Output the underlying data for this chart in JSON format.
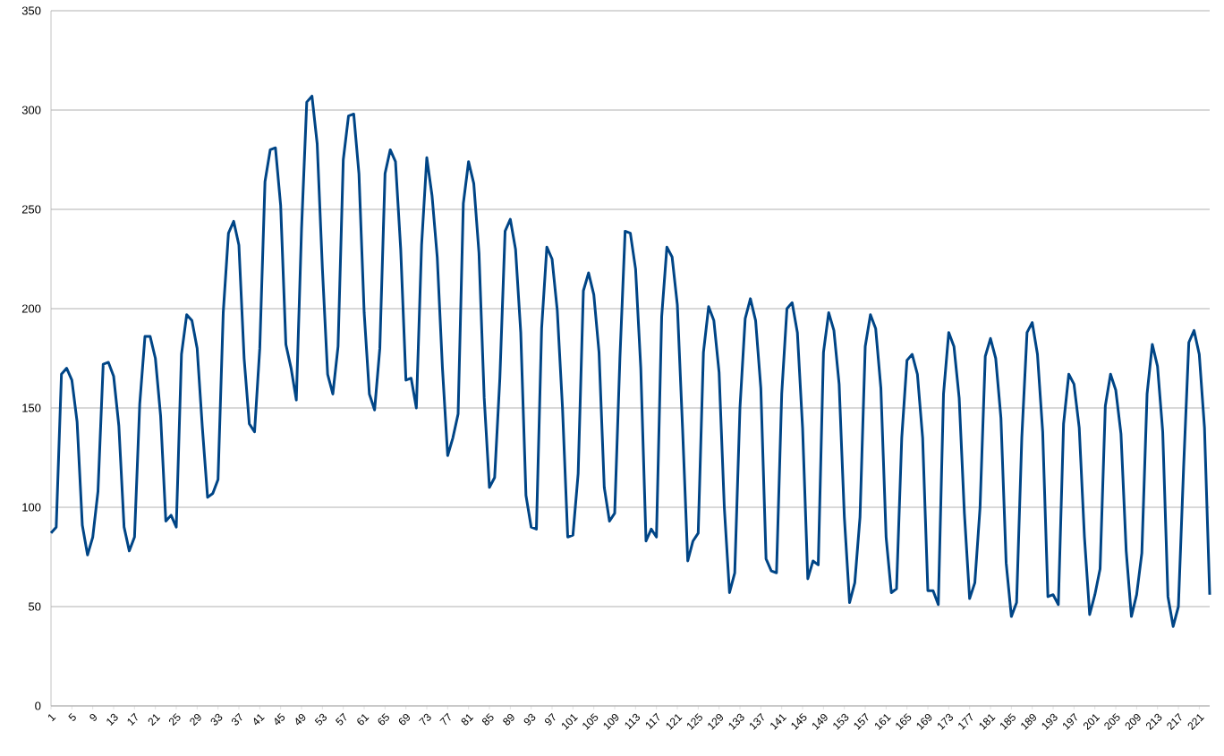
{
  "chart_data": {
    "type": "line",
    "color": "#004586",
    "categories": [
      "1",
      null,
      null,
      null,
      "5",
      null,
      null,
      null,
      "9",
      null,
      null,
      null,
      "13",
      null,
      null,
      null,
      "17",
      null,
      null,
      null,
      "21",
      null,
      null,
      null,
      "25",
      null,
      null,
      null,
      "29",
      null,
      null,
      null,
      "33",
      null,
      null,
      null,
      "37",
      null,
      null,
      null,
      "41",
      null,
      null,
      null,
      "45",
      null,
      null,
      null,
      "49",
      null,
      null,
      null,
      "53",
      null,
      null,
      null,
      "57",
      null,
      null,
      null,
      "61",
      null,
      null,
      null,
      "65",
      null,
      null,
      null,
      "69",
      null,
      null,
      null,
      "73",
      null,
      null,
      null,
      "77",
      null,
      null,
      null,
      "81",
      null,
      null,
      null,
      "85",
      null,
      null,
      null,
      "89",
      null,
      null,
      null,
      "93",
      null,
      null,
      null,
      "97",
      null,
      null,
      null,
      "101",
      null,
      null,
      null,
      "105",
      null,
      null,
      null,
      "109",
      null,
      null,
      null,
      "113",
      null,
      null,
      null,
      "117",
      null,
      null,
      null,
      "121",
      null,
      null,
      null,
      "125",
      null,
      null,
      null,
      "129",
      null,
      null,
      null,
      "133",
      null,
      null,
      null,
      "137",
      null,
      null,
      null,
      "141",
      null,
      null,
      null,
      "145",
      null,
      null,
      null,
      "149",
      null,
      null,
      null,
      "153",
      null,
      null,
      null,
      "157",
      null,
      null,
      null,
      "161",
      null,
      null,
      null,
      "165",
      null,
      null,
      null,
      "169",
      null,
      null,
      null,
      "173",
      null,
      null,
      null,
      "177",
      null,
      null,
      null,
      "181",
      null,
      null,
      null,
      "185",
      null,
      null,
      null,
      "189",
      null,
      null,
      null,
      "193",
      null,
      null,
      null,
      "197",
      null,
      null,
      null,
      "201",
      null,
      null,
      null,
      "205",
      null,
      null,
      null,
      "209",
      null,
      null,
      null,
      "213",
      null,
      null,
      null,
      "217",
      null,
      null,
      null,
      "221",
      null,
      null
    ],
    "values": [
      87,
      90,
      167,
      170,
      164,
      143,
      91,
      76,
      85,
      108,
      172,
      173,
      166,
      141,
      90,
      78,
      85,
      152,
      186,
      186,
      175,
      146,
      93,
      96,
      90,
      177,
      197,
      194,
      180,
      140,
      105,
      107,
      114,
      198,
      238,
      244,
      232,
      175,
      142,
      138,
      180,
      264,
      280,
      281,
      252,
      182,
      170,
      154,
      240,
      304,
      307,
      283,
      220,
      167,
      157,
      181,
      275,
      297,
      298,
      268,
      198,
      157,
      149,
      180,
      268,
      280,
      274,
      230,
      164,
      165,
      150,
      232,
      276,
      257,
      226,
      170,
      126,
      135,
      147,
      253,
      274,
      263,
      228,
      155,
      110,
      115,
      165,
      239,
      245,
      230,
      188,
      106,
      90,
      89,
      190,
      231,
      225,
      199,
      150,
      85,
      86,
      117,
      209,
      218,
      207,
      178,
      110,
      93,
      97,
      175,
      239,
      238,
      220,
      170,
      83,
      89,
      85,
      196,
      231,
      226,
      202,
      140,
      73,
      83,
      87,
      178,
      201,
      194,
      168,
      100,
      57,
      67,
      150,
      195,
      205,
      194,
      160,
      74,
      68,
      67,
      157,
      200,
      203,
      188,
      140,
      64,
      73,
      71,
      178,
      198,
      189,
      162,
      95,
      52,
      62,
      95,
      181,
      197,
      190,
      160,
      85,
      57,
      59,
      135,
      174,
      177,
      167,
      135,
      58,
      58,
      51,
      157,
      188,
      181,
      155,
      97,
      54,
      62,
      100,
      176,
      185,
      175,
      145,
      72,
      45,
      52,
      135,
      188,
      193,
      177,
      138,
      55,
      56,
      51,
      142,
      167,
      162,
      140,
      85,
      46,
      56,
      69,
      151,
      167,
      159,
      137,
      78,
      45,
      56,
      77,
      157,
      182,
      171,
      138,
      55,
      40,
      50,
      120,
      183,
      189,
      177,
      140,
      56
    ],
    "ylim": [
      0,
      350
    ],
    "yticks": [
      0,
      50,
      100,
      150,
      200,
      250,
      300,
      350
    ],
    "grid": "y"
  }
}
